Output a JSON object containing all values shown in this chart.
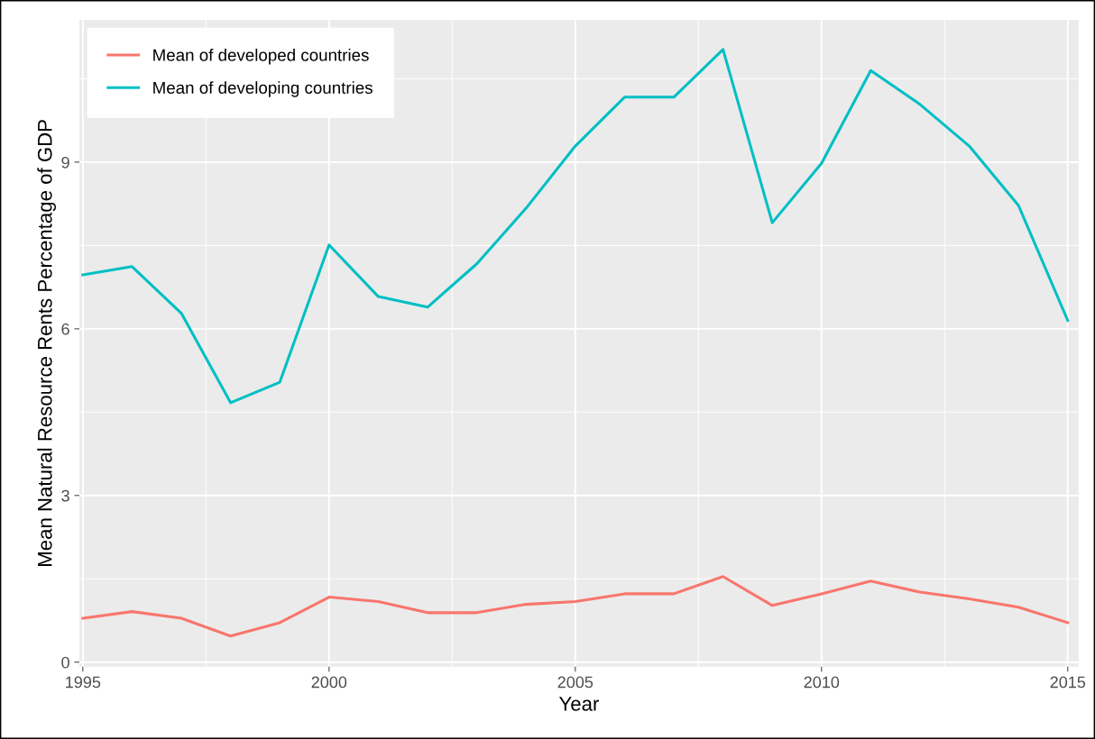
{
  "chart_data": {
    "type": "line",
    "xlabel": "Year",
    "ylabel": "Mean Natural Resource Rents Percentage of GDP",
    "x": [
      1995,
      1996,
      1997,
      1998,
      1999,
      2000,
      2001,
      2002,
      2003,
      2004,
      2005,
      2006,
      2007,
      2008,
      2009,
      2010,
      2011,
      2012,
      2013,
      2014,
      2015
    ],
    "series": [
      {
        "name": "Mean of developed countries",
        "color": "#f8766d",
        "values": [
          0.79,
          0.91,
          0.79,
          0.47,
          0.71,
          1.17,
          1.09,
          0.89,
          0.89,
          1.04,
          1.09,
          1.23,
          1.23,
          1.54,
          1.02,
          1.23,
          1.46,
          1.26,
          1.14,
          0.99,
          0.71
        ]
      },
      {
        "name": "Mean of developing countries",
        "color": "#00bfc4",
        "values": [
          6.97,
          7.12,
          6.28,
          4.67,
          5.04,
          7.51,
          6.58,
          6.39,
          7.17,
          8.17,
          9.29,
          10.17,
          10.17,
          11.03,
          7.91,
          8.98,
          10.65,
          10.04,
          9.29,
          8.22,
          6.15
        ]
      }
    ],
    "xlim": [
      1994.93,
      2015.22
    ],
    "xticks": [
      1995,
      2000,
      2005,
      2010,
      2015
    ],
    "ylim": [
      -0.08,
      11.56
    ],
    "yticks": [
      0,
      3,
      6,
      9
    ],
    "grid": true,
    "legend": "top left",
    "marker": "none",
    "line_style": "solid"
  }
}
